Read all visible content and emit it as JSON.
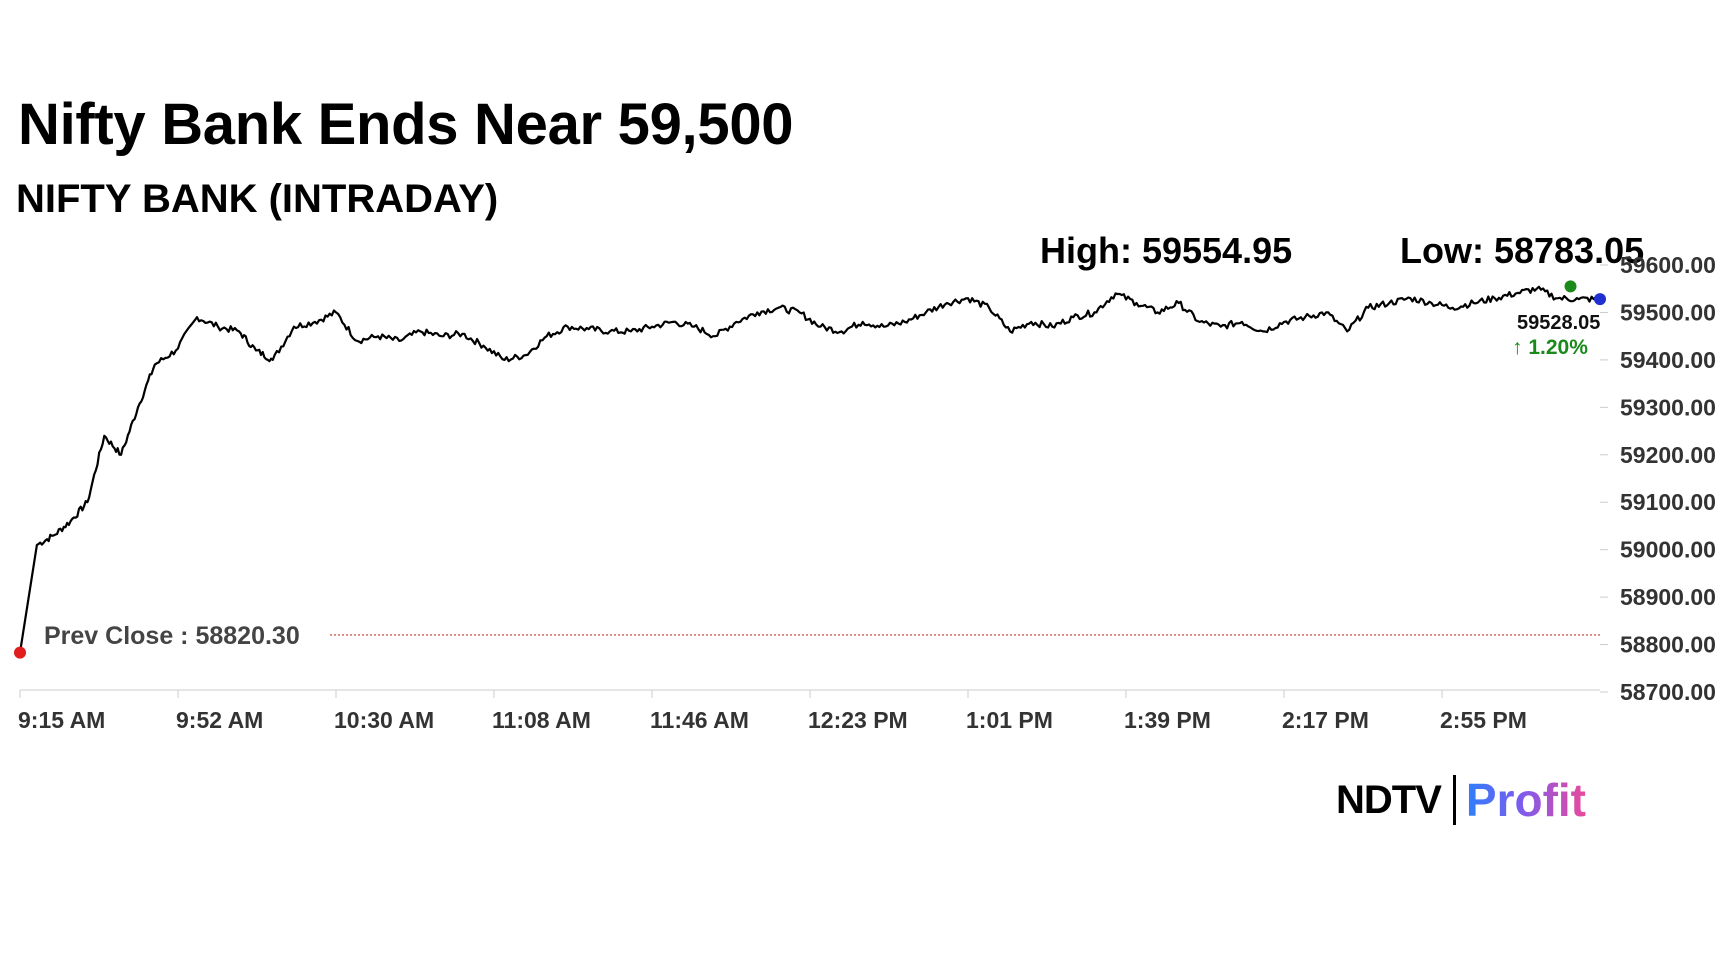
{
  "headline": "Nifty Bank Ends Near 59,500",
  "chart_data": {
    "type": "line",
    "title": "NIFTY BANK (INTRADAY)",
    "high_label": "High: 59554.95",
    "low_label": "Low: 58783.05",
    "high": 59554.95,
    "low": 58783.05,
    "last_value": 59528.05,
    "last_value_label": "59528.05",
    "change_label": "↑ 1.20%",
    "prev_close": 58820.3,
    "prev_close_label": "Prev Close : 58820.30",
    "ylim": [
      58700,
      59600
    ],
    "yticks": [
      "59600.00",
      "59500.00",
      "59400.00",
      "59300.00",
      "59200.00",
      "59100.00",
      "59000.00",
      "58900.00",
      "58800.00",
      "58700.00"
    ],
    "xlabel_ticks": [
      "9:15 AM",
      "9:52 AM",
      "10:30 AM",
      "11:08 AM",
      "11:46 AM",
      "12:23 PM",
      "1:01 PM",
      "1:39 PM",
      "2:17 PM",
      "2:55 PM"
    ],
    "x_minutes": [
      0,
      4,
      8,
      12,
      16,
      20,
      24,
      28,
      32,
      37,
      42,
      47,
      52,
      56,
      60,
      65,
      70,
      75,
      80,
      85,
      90,
      95,
      100,
      105,
      110,
      115,
      120,
      125,
      130,
      135,
      140,
      145,
      150,
      155,
      160,
      165,
      170,
      175,
      180,
      185,
      190,
      195,
      200,
      205,
      210,
      215,
      220,
      225,
      230,
      235,
      240,
      245,
      250,
      255,
      260,
      265,
      270,
      275,
      280,
      285,
      290,
      295,
      300,
      305,
      310,
      315,
      320,
      325,
      330,
      335,
      340,
      345,
      350,
      355,
      360,
      365,
      370,
      375
    ],
    "values": [
      58783.05,
      59010,
      59030,
      59060,
      59100,
      59240,
      59200,
      59300,
      59390,
      59420,
      59490,
      59470,
      59460,
      59420,
      59400,
      59470,
      59480,
      59500,
      59440,
      59450,
      59440,
      59460,
      59450,
      59455,
      59430,
      59400,
      59410,
      59450,
      59470,
      59465,
      59460,
      59460,
      59470,
      59480,
      59470,
      59450,
      59480,
      59500,
      59510,
      59500,
      59470,
      59460,
      59480,
      59470,
      59480,
      59500,
      59520,
      59530,
      59510,
      59460,
      59480,
      59470,
      59490,
      59500,
      59540,
      59520,
      59500,
      59520,
      59480,
      59470,
      59480,
      59460,
      59480,
      59490,
      59500,
      59460,
      59510,
      59520,
      59530,
      59520,
      59510,
      59520,
      59530,
      59540,
      59550,
      59530,
      59528.05,
      59528.05
    ],
    "session_minutes": [
      0,
      375
    ],
    "grid": false,
    "high_marker_minute": 368
  }
}
